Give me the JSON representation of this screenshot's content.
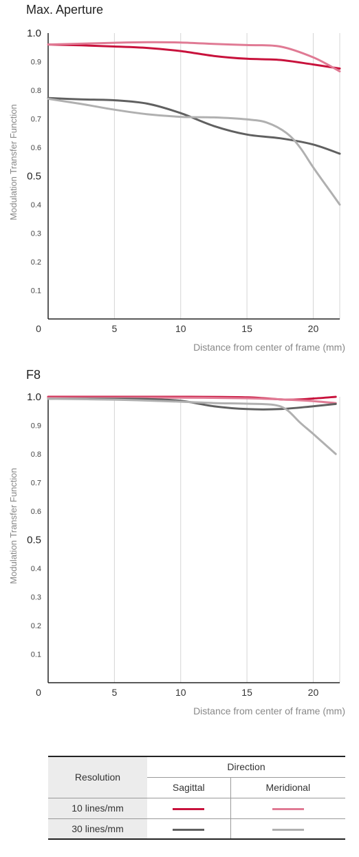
{
  "colors": {
    "s10": "#c8123c",
    "m10": "#e07a94",
    "s30": "#606060",
    "m30": "#b0b0b0",
    "axis": "#222222",
    "tick": "#444444",
    "label": "#888888"
  },
  "legend": {
    "resolution_header": "Resolution",
    "direction_header": "Direction",
    "sagittal": "Sagittal",
    "meridional": "Meridional",
    "rows": [
      "10 lines/mm",
      "30 lines/mm"
    ]
  },
  "chart_data": [
    {
      "type": "line",
      "title": "Max. Aperture",
      "xlabel": "Distance from center of frame (mm)",
      "ylabel": "Modulation Transfer Function",
      "xlim": [
        0,
        22
      ],
      "ylim": [
        0,
        1.0
      ],
      "x_ticks": [
        "0",
        "5",
        "10",
        "15",
        "20"
      ],
      "y_ticks": [
        "0.1",
        "0.2",
        "0.3",
        "0.4",
        "0.5",
        "0.6",
        "0.7",
        "0.8",
        "0.9",
        "1.0"
      ],
      "series": [
        {
          "key": "s10",
          "x": [
            0,
            2.5,
            5,
            7.5,
            10,
            12.5,
            15,
            17.5,
            20,
            22
          ],
          "values": [
            0.96,
            0.957,
            0.953,
            0.948,
            0.937,
            0.92,
            0.91,
            0.906,
            0.89,
            0.876
          ]
        },
        {
          "key": "m10",
          "x": [
            0,
            2.5,
            5,
            7.5,
            10,
            12.5,
            15,
            17.5,
            20,
            22
          ],
          "values": [
            0.96,
            0.963,
            0.966,
            0.968,
            0.967,
            0.962,
            0.958,
            0.953,
            0.915,
            0.866
          ]
        },
        {
          "key": "s30",
          "x": [
            0,
            2.5,
            5,
            7.5,
            10,
            12.5,
            15,
            17.5,
            20,
            22
          ],
          "values": [
            0.773,
            0.768,
            0.765,
            0.753,
            0.72,
            0.675,
            0.645,
            0.632,
            0.61,
            0.578
          ]
        },
        {
          "key": "m30",
          "x": [
            0,
            2.5,
            5,
            7.5,
            10,
            12.5,
            15,
            16.5,
            18,
            19,
            20,
            21,
            22
          ],
          "values": [
            0.77,
            0.752,
            0.732,
            0.716,
            0.707,
            0.705,
            0.698,
            0.687,
            0.65,
            0.6,
            0.53,
            0.465,
            0.4
          ]
        }
      ]
    },
    {
      "type": "line",
      "title": "F8",
      "xlabel": "Distance from center of frame (mm)",
      "ylabel": "Modulation Transfer Function",
      "xlim": [
        0,
        22
      ],
      "ylim": [
        0,
        1.0
      ],
      "x_ticks": [
        "0",
        "5",
        "10",
        "15",
        "20"
      ],
      "y_ticks": [
        "0.1",
        "0.2",
        "0.3",
        "0.4",
        "0.5",
        "0.6",
        "0.7",
        "0.8",
        "0.9",
        "1.0"
      ],
      "series": [
        {
          "key": "s10",
          "x": [
            0,
            5,
            10,
            15,
            18,
            20,
            21.7
          ],
          "values": [
            1.0,
            1.0,
            1.0,
            0.998,
            0.99,
            0.994,
            1.0
          ]
        },
        {
          "key": "m10",
          "x": [
            0,
            5,
            10,
            15,
            18,
            20,
            21.7
          ],
          "values": [
            0.997,
            0.997,
            0.997,
            0.995,
            0.99,
            0.985,
            0.978
          ]
        },
        {
          "key": "s30",
          "x": [
            0,
            5,
            7.5,
            10,
            12.5,
            15,
            17.5,
            20,
            21.7
          ],
          "values": [
            0.993,
            0.993,
            0.992,
            0.986,
            0.967,
            0.957,
            0.957,
            0.967,
            0.975
          ]
        },
        {
          "key": "m30",
          "x": [
            0,
            5,
            10,
            12.5,
            15,
            17,
            18,
            19,
            20,
            21.7
          ],
          "values": [
            0.993,
            0.99,
            0.983,
            0.978,
            0.976,
            0.972,
            0.955,
            0.91,
            0.87,
            0.8
          ]
        }
      ]
    }
  ]
}
